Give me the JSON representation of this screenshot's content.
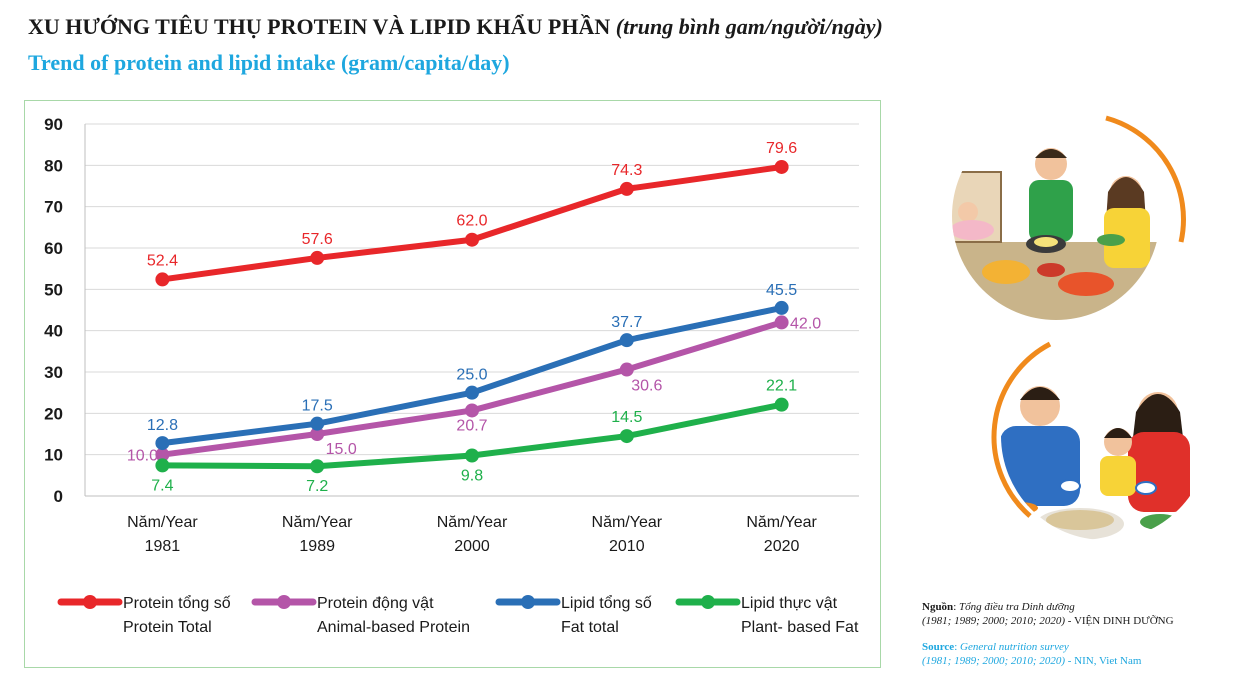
{
  "titles": {
    "vn_main": "XU HƯỚNG TIÊU THỤ PROTEIN VÀ LIPID KHẨU PHẦN",
    "vn_unit": "(trung bình gam/người/ngày)",
    "en": "Trend of protein and lipid intake (gram/capita/day)"
  },
  "chart_data": {
    "type": "line",
    "x_labels": [
      [
        "Năm/Year",
        "1981"
      ],
      [
        "Năm/Year",
        "1989"
      ],
      [
        "Năm/Year",
        "2000"
      ],
      [
        "Năm/Year",
        "2010"
      ],
      [
        "Năm/Year",
        "2020"
      ]
    ],
    "y_ticks": [
      "0",
      "10",
      "20",
      "30",
      "40",
      "50",
      "60",
      "70",
      "80",
      "90"
    ],
    "ylim": [
      0,
      90
    ],
    "grid": true,
    "legend_position": "bottom",
    "series": [
      {
        "name": "Protein tổng số",
        "name_en": "Protein Total",
        "color": "#e8272a",
        "values": [
          52.4,
          57.6,
          62.0,
          74.3,
          79.6
        ],
        "labels": [
          "52.4",
          "57.6",
          "62.0",
          "74.3",
          "79.6"
        ]
      },
      {
        "name": "Protein động vật",
        "name_en": "Animal-based Protein",
        "color": "#b455a8",
        "values": [
          10.0,
          15.0,
          20.7,
          30.6,
          42.0
        ],
        "labels": [
          "10.0",
          "15.0",
          "20.7",
          "30.6",
          "42.0"
        ]
      },
      {
        "name": "Lipid tổng số",
        "name_en": "Fat total",
        "color": "#2a6fb6",
        "values": [
          12.8,
          17.5,
          25.0,
          37.7,
          45.5
        ],
        "labels": [
          "12.8",
          "17.5",
          "25.0",
          "37.7",
          "45.5"
        ]
      },
      {
        "name": "Lipid thực vật",
        "name_en": "Plant- based Fat",
        "color": "#1fb04b",
        "values": [
          7.4,
          7.2,
          9.8,
          14.5,
          22.1
        ],
        "labels": [
          "7.4",
          "7.2",
          "9.8",
          "14.5",
          "22.1"
        ]
      }
    ]
  },
  "source": {
    "vn_label": "Nguồn",
    "vn_text": "Tổng điều tra Dinh dưỡng",
    "vn_years": "(1981; 1989; 2000; 2010; 2020)",
    "vn_org": "- VIỆN DINH DƯỠNG",
    "en_label": "Source",
    "en_text": "General nutrition survey",
    "en_years": "(1981; 1989; 2000; 2010; 2020)",
    "en_org": "- NIN, Viet Nam"
  },
  "colors": {
    "accent_blue": "#1ea7df",
    "frame_green": "#a8d8a8",
    "orange_arc": "#f08a1c"
  }
}
